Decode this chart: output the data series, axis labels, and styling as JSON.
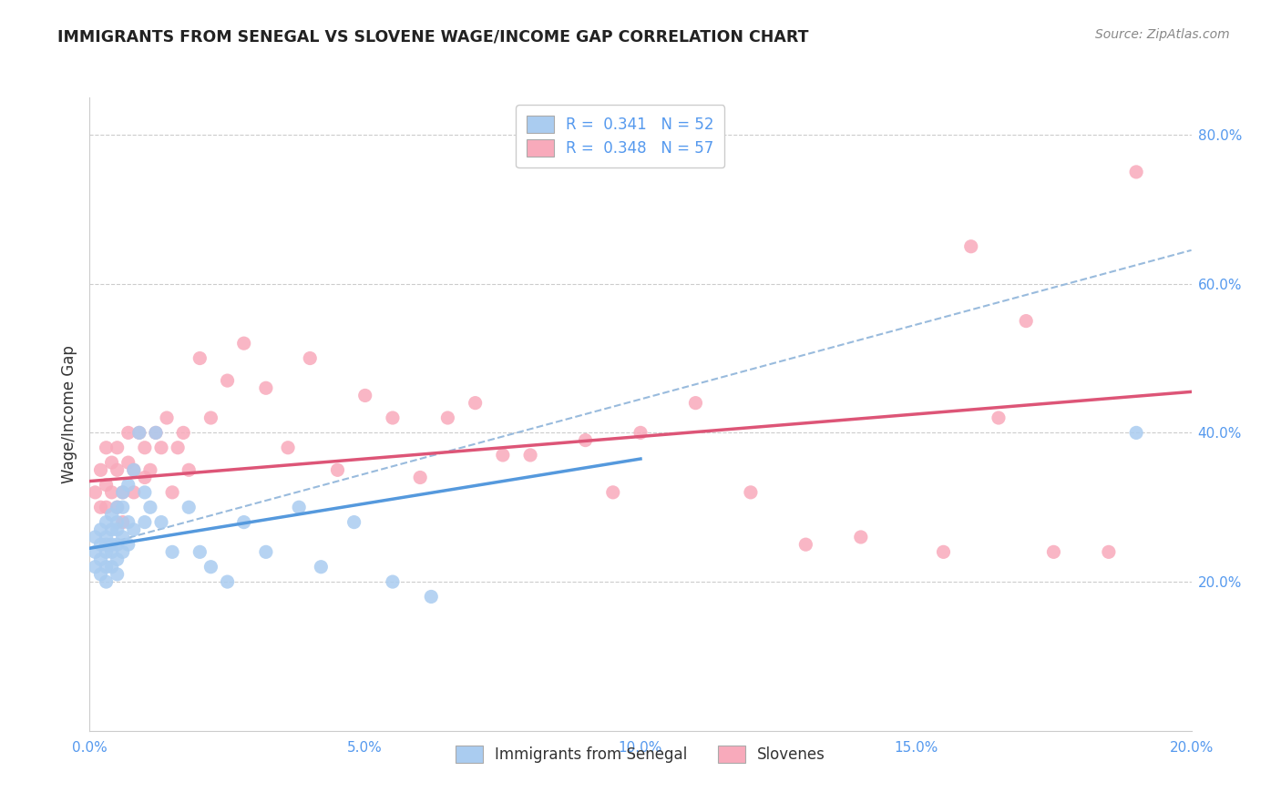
{
  "title": "IMMIGRANTS FROM SENEGAL VS SLOVENE WAGE/INCOME GAP CORRELATION CHART",
  "source": "Source: ZipAtlas.com",
  "ylabel": "Wage/Income Gap",
  "r_senegal": 0.341,
  "n_senegal": 52,
  "r_slovene": 0.348,
  "n_slovene": 57,
  "xlim": [
    0.0,
    0.2
  ],
  "ylim": [
    0.0,
    0.85
  ],
  "yticks": [
    0.2,
    0.4,
    0.6,
    0.8
  ],
  "xticks": [
    0.0,
    0.05,
    0.1,
    0.15,
    0.2
  ],
  "color_senegal": "#aaccf0",
  "color_senegal_line": "#5599dd",
  "color_slovene": "#f8aabb",
  "color_slovene_line": "#dd5577",
  "color_dashed": "#99bbdd",
  "senegal_x": [
    0.001,
    0.001,
    0.001,
    0.002,
    0.002,
    0.002,
    0.002,
    0.003,
    0.003,
    0.003,
    0.003,
    0.003,
    0.003,
    0.004,
    0.004,
    0.004,
    0.004,
    0.004,
    0.005,
    0.005,
    0.005,
    0.005,
    0.005,
    0.005,
    0.006,
    0.006,
    0.006,
    0.006,
    0.007,
    0.007,
    0.007,
    0.008,
    0.008,
    0.009,
    0.01,
    0.01,
    0.011,
    0.012,
    0.013,
    0.015,
    0.018,
    0.02,
    0.022,
    0.025,
    0.028,
    0.032,
    0.038,
    0.042,
    0.048,
    0.055,
    0.062,
    0.19
  ],
  "senegal_y": [
    0.26,
    0.24,
    0.22,
    0.27,
    0.25,
    0.23,
    0.21,
    0.28,
    0.26,
    0.25,
    0.24,
    0.22,
    0.2,
    0.29,
    0.27,
    0.25,
    0.24,
    0.22,
    0.3,
    0.28,
    0.27,
    0.25,
    0.23,
    0.21,
    0.32,
    0.3,
    0.26,
    0.24,
    0.33,
    0.28,
    0.25,
    0.35,
    0.27,
    0.4,
    0.32,
    0.28,
    0.3,
    0.4,
    0.28,
    0.24,
    0.3,
    0.24,
    0.22,
    0.2,
    0.28,
    0.24,
    0.3,
    0.22,
    0.28,
    0.2,
    0.18,
    0.4
  ],
  "slovene_x": [
    0.001,
    0.002,
    0.002,
    0.003,
    0.003,
    0.003,
    0.004,
    0.004,
    0.005,
    0.005,
    0.005,
    0.006,
    0.006,
    0.007,
    0.007,
    0.008,
    0.008,
    0.009,
    0.01,
    0.01,
    0.011,
    0.012,
    0.013,
    0.014,
    0.015,
    0.016,
    0.017,
    0.018,
    0.02,
    0.022,
    0.025,
    0.028,
    0.032,
    0.036,
    0.04,
    0.045,
    0.05,
    0.055,
    0.06,
    0.065,
    0.07,
    0.075,
    0.08,
    0.09,
    0.095,
    0.1,
    0.11,
    0.12,
    0.13,
    0.14,
    0.155,
    0.16,
    0.165,
    0.17,
    0.175,
    0.185,
    0.19
  ],
  "slovene_y": [
    0.32,
    0.3,
    0.35,
    0.3,
    0.33,
    0.38,
    0.32,
    0.36,
    0.3,
    0.35,
    0.38,
    0.28,
    0.32,
    0.36,
    0.4,
    0.32,
    0.35,
    0.4,
    0.34,
    0.38,
    0.35,
    0.4,
    0.38,
    0.42,
    0.32,
    0.38,
    0.4,
    0.35,
    0.5,
    0.42,
    0.47,
    0.52,
    0.46,
    0.38,
    0.5,
    0.35,
    0.45,
    0.42,
    0.34,
    0.42,
    0.44,
    0.37,
    0.37,
    0.39,
    0.32,
    0.4,
    0.44,
    0.32,
    0.25,
    0.26,
    0.24,
    0.65,
    0.42,
    0.55,
    0.24,
    0.24,
    0.75
  ],
  "senegal_line_x0": 0.0,
  "senegal_line_y0": 0.245,
  "senegal_line_x1": 0.1,
  "senegal_line_y1": 0.365,
  "slovene_line_x0": 0.0,
  "slovene_line_y0": 0.335,
  "slovene_line_x1": 0.2,
  "slovene_line_y1": 0.455,
  "dashed_line_x0": 0.0,
  "dashed_line_y0": 0.245,
  "dashed_line_x1": 0.2,
  "dashed_line_y1": 0.645
}
